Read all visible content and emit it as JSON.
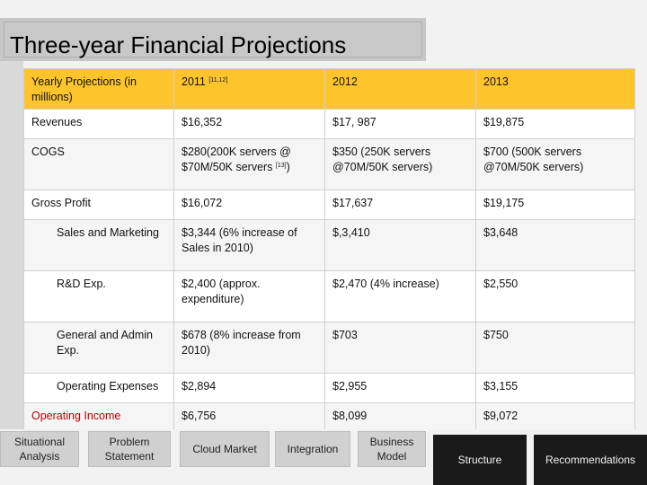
{
  "title": "Three-year Financial Projections",
  "table": {
    "header": [
      "Yearly Projections (in millions)",
      "2011",
      "2012",
      "2013"
    ],
    "header_sup": "[11,12]",
    "rows": [
      {
        "label": "Revenues",
        "indent": false,
        "red": false,
        "c1": "$16,352",
        "c2": "$17, 987",
        "c3": "$19,875"
      },
      {
        "label": "COGS",
        "indent": false,
        "red": false,
        "c1": "$280(200K servers @ $70M/50K servers ",
        "c1_sup": "[13]",
        "c1_tail": ")",
        "c2": "$350 (250K servers @70M/50K servers)",
        "c3": "$700 (500K servers @70M/50K servers)"
      },
      {
        "label": "Gross Profit",
        "indent": false,
        "red": false,
        "c1": "$16,072",
        "c2": "$17,637",
        "c3": "$19,175"
      },
      {
        "label": "Sales and Marketing",
        "indent": true,
        "red": false,
        "c1": "$3,344 (6% increase of Sales in 2010)",
        "c2": "$,3,410",
        "c3": "$3,648"
      },
      {
        "label": "R&D Exp.",
        "indent": true,
        "red": false,
        "c1": "$2,400 (approx. expenditure)",
        "c2": "$2,470 (4% increase)",
        "c3": "$2,550"
      },
      {
        "label": "General and Admin Exp.",
        "indent": true,
        "red": false,
        "c1": "$678 (8% increase from 2010)",
        "c2": "$703",
        "c3": "$750"
      },
      {
        "label": "Operating Expenses",
        "indent": true,
        "red": false,
        "c1": "$2,894",
        "c2": "$2,955",
        "c3": "$3,155"
      },
      {
        "label": "Operating Income",
        "indent": false,
        "red": true,
        "c1": "$6,756",
        "c2": "$8,099",
        "c3": "$9,072"
      }
    ]
  },
  "nav": {
    "situational": "Situational Analysis",
    "problem": "Problem Statement",
    "cloud": "Cloud Market",
    "integration": "Integration",
    "business": "Business Model",
    "structure": "Structure",
    "recommendations": "Recommendations"
  }
}
